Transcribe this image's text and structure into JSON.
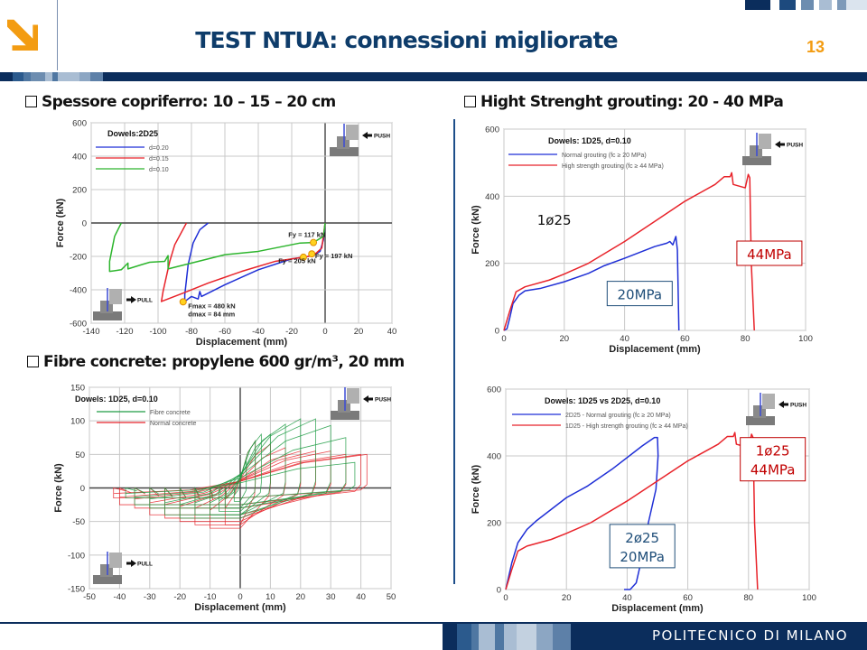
{
  "header": {
    "title": "TEST NTUA: connessioni migliorate",
    "page_number": "13",
    "accent_color": "#f39c12",
    "brand_color": "#0b2d5c",
    "logo_icon": "orange-down-right-arrow-icon"
  },
  "sections": [
    {
      "label": "Spessore copriferro: 10 – 15 – 20 cm",
      "icon": "checkbox-icon"
    },
    {
      "label": "Hight Strenght grouting: 20 - 40 MPa",
      "icon": "checkbox-icon"
    },
    {
      "label": "Fibre concrete: propylene 600 gr/m³, 20 mm",
      "icon": "checkbox-icon"
    }
  ],
  "footer": {
    "label": "POLITECNICO DI MILANO"
  },
  "chart_data": [
    {
      "type": "line",
      "title": "Dowels:2D25",
      "xlabel": "Displacement (mm)",
      "ylabel": "Force (kN)",
      "xlim": [
        -140,
        40
      ],
      "ylim": [
        -600,
        600
      ],
      "xticks": [
        -140,
        -120,
        -100,
        -80,
        -60,
        -40,
        -20,
        0,
        20,
        40
      ],
      "yticks": [
        -600,
        -400,
        -200,
        0,
        200,
        400,
        600
      ],
      "grid": true,
      "legend": "top-left",
      "icons": [
        {
          "kind": "push",
          "label": "PUSH",
          "position": "top-right"
        },
        {
          "kind": "pull",
          "label": "PULL",
          "position": "bottom-left"
        }
      ],
      "series": [
        {
          "name": "d=0.20",
          "color": "#1f2fd6",
          "points": [
            [
              0,
              0
            ],
            [
              -1,
              -100
            ],
            [
              -3,
              -170
            ],
            [
              -8,
              -197
            ],
            [
              -20,
              -215
            ],
            [
              -40,
              -280
            ],
            [
              -60,
              -370
            ],
            [
              -74,
              -440
            ],
            [
              -75,
              -410
            ],
            [
              -76,
              -455
            ],
            [
              -80,
              -440
            ],
            [
              -84,
              -470
            ],
            [
              -84,
              -430
            ],
            [
              -82,
              -250
            ],
            [
              -79,
              -120
            ],
            [
              -75,
              -40
            ],
            [
              -70,
              0
            ]
          ]
        },
        {
          "name": "d=0.15",
          "color": "#e8232a",
          "points": [
            [
              0,
              0
            ],
            [
              -2,
              -150
            ],
            [
              -7,
              -195
            ],
            [
              -13,
              -205
            ],
            [
              -30,
              -230
            ],
            [
              -50,
              -290
            ],
            [
              -70,
              -360
            ],
            [
              -85,
              -420
            ],
            [
              -98,
              -470
            ],
            [
              -97,
              -410
            ],
            [
              -93,
              -230
            ],
            [
              -90,
              -130
            ],
            [
              -83,
              0
            ]
          ]
        },
        {
          "name": "d=0.10",
          "color": "#2db52d",
          "points": [
            [
              0,
              0
            ],
            [
              -1,
              -80
            ],
            [
              -7,
              -117
            ],
            [
              -15,
              -120
            ],
            [
              -40,
              -170
            ],
            [
              -60,
              -190
            ],
            [
              -94,
              -275
            ],
            [
              -94,
              -195
            ],
            [
              -96,
              -230
            ],
            [
              -105,
              -235
            ],
            [
              -110,
              -250
            ],
            [
              -118,
              -275
            ],
            [
              -118,
              -240
            ],
            [
              -122,
              -280
            ],
            [
              -129,
              -290
            ],
            [
              -129,
              -230
            ],
            [
              -126,
              -80
            ],
            [
              -122,
              0
            ]
          ]
        }
      ],
      "markers": [
        [
          -7,
          -117
        ],
        [
          -8,
          -185
        ],
        [
          -13,
          -205
        ],
        [
          -85,
          -472
        ]
      ],
      "annotations": [
        {
          "text": "Fy = 117 kN",
          "x": -22,
          "y": -85
        },
        {
          "text": "Fy = 197 kN",
          "x": -6,
          "y": -212
        },
        {
          "text": "Fy = 205 kN",
          "x": -28,
          "y": -240
        },
        {
          "text": "Fmax = 480 kN",
          "x": -82,
          "y": -510
        },
        {
          "text": "dmax = 84 mm",
          "x": -82,
          "y": -560
        }
      ]
    },
    {
      "type": "line",
      "title": "Dowels: 1D25,  d=0.10",
      "xlabel": "Displacement (mm)",
      "ylabel": "Force (kN)",
      "xlim": [
        0,
        100
      ],
      "ylim": [
        0,
        600
      ],
      "xticks": [
        0,
        20,
        40,
        60,
        80,
        100
      ],
      "yticks": [
        0,
        200,
        400,
        600
      ],
      "grid": true,
      "legend": "top-left",
      "icons": [
        {
          "kind": "push",
          "label": "PUSH",
          "position": "top-right"
        }
      ],
      "series": [
        {
          "name": "Normal grouting (fc ≥ 20 MPa)",
          "color": "#1f2fd6",
          "points": [
            [
              0,
              0
            ],
            [
              1,
              5
            ],
            [
              2,
              40
            ],
            [
              3,
              80
            ],
            [
              5,
              105
            ],
            [
              7,
              118
            ],
            [
              12,
              125
            ],
            [
              20,
              145
            ],
            [
              28,
              170
            ],
            [
              33,
              192
            ],
            [
              40,
              215
            ],
            [
              50,
              250
            ],
            [
              54,
              260
            ],
            [
              55,
              265
            ],
            [
              56,
              255
            ],
            [
              57,
              280
            ],
            [
              57.5,
              240
            ],
            [
              58,
              0
            ]
          ]
        },
        {
          "name": "High strength grouting (fc ≥ 44 MPa)",
          "color": "#e8232a",
          "points": [
            [
              0,
              0
            ],
            [
              2,
              60
            ],
            [
              4,
              115
            ],
            [
              7,
              130
            ],
            [
              15,
              150
            ],
            [
              20,
              168
            ],
            [
              28,
              200
            ],
            [
              40,
              265
            ],
            [
              50,
              325
            ],
            [
              60,
              385
            ],
            [
              65,
              410
            ],
            [
              70,
              435
            ],
            [
              73,
              458
            ],
            [
              75,
              458
            ],
            [
              75.5,
              470
            ],
            [
              76,
              435
            ],
            [
              80,
              425
            ],
            [
              81,
              465
            ],
            [
              81.5,
              455
            ],
            [
              82,
              200
            ],
            [
              83,
              0
            ]
          ]
        }
      ],
      "text_labels": [
        {
          "text": "1ø25",
          "x": 11,
          "y": 315
        }
      ],
      "boxes": [
        {
          "lines": [
            "20MPa"
          ],
          "color": "#1f4e79",
          "x": 45,
          "y": 110
        },
        {
          "lines": [
            "44MPa"
          ],
          "color": "#c00000",
          "x": 88,
          "y": 230
        }
      ]
    },
    {
      "type": "line",
      "title": "Dowels: 1D25 vs 2D25,  d=0.10",
      "xlabel": "Displacement (mm)",
      "ylabel": "Force (kN)",
      "xlim": [
        0,
        100
      ],
      "ylim": [
        0,
        600
      ],
      "xticks": [
        0,
        20,
        40,
        60,
        80,
        100
      ],
      "yticks": [
        0,
        200,
        400,
        600
      ],
      "grid": true,
      "legend": "top-left",
      "icons": [
        {
          "kind": "push",
          "label": "PUSH",
          "position": "top-right"
        }
      ],
      "series": [
        {
          "name": "2D25 - Normal grouting (fc ≥ 20 MPa)",
          "color": "#1f2fd6",
          "points": [
            [
              0,
              0
            ],
            [
              2,
              80
            ],
            [
              4,
              140
            ],
            [
              7,
              180
            ],
            [
              10,
              205
            ],
            [
              20,
              275
            ],
            [
              27,
              310
            ],
            [
              35,
              360
            ],
            [
              45,
              430
            ],
            [
              49,
              455
            ],
            [
              50,
              455
            ],
            [
              50.2,
              400
            ],
            [
              49.5,
              300
            ],
            [
              47,
              200
            ],
            [
              45,
              100
            ],
            [
              43,
              20
            ],
            [
              41,
              0
            ],
            [
              39,
              0
            ]
          ]
        },
        {
          "name": "1D25 - High strength grouting (fc ≥ 44 MPa)",
          "color": "#e8232a",
          "points": [
            [
              0,
              0
            ],
            [
              2,
              60
            ],
            [
              4,
              115
            ],
            [
              7,
              130
            ],
            [
              15,
              150
            ],
            [
              20,
              168
            ],
            [
              28,
              200
            ],
            [
              40,
              265
            ],
            [
              50,
              325
            ],
            [
              60,
              385
            ],
            [
              65,
              410
            ],
            [
              70,
              435
            ],
            [
              73,
              458
            ],
            [
              75,
              458
            ],
            [
              75.5,
              470
            ],
            [
              76,
              435
            ],
            [
              80,
              425
            ],
            [
              81,
              465
            ],
            [
              81.5,
              455
            ],
            [
              82,
              200
            ],
            [
              83,
              0
            ]
          ]
        }
      ],
      "boxes": [
        {
          "lines": [
            "2ø25",
            "20MPa"
          ],
          "color": "#1f4e79",
          "x": 45,
          "y": 130
        },
        {
          "lines": [
            "1ø25",
            "44MPa"
          ],
          "color": "#c00000",
          "x": 88,
          "y": 390
        }
      ]
    },
    {
      "type": "line",
      "title": "Dowels: 1D25,  d=0.10",
      "xlabel": "Displacement (mm)",
      "ylabel": "Force (kN)",
      "xlim": [
        -50,
        50
      ],
      "ylim": [
        -150,
        150
      ],
      "xticks": [
        -50,
        -40,
        -30,
        -20,
        -10,
        0,
        10,
        20,
        30,
        40,
        50
      ],
      "yticks": [
        -150,
        -100,
        -50,
        0,
        50,
        100,
        150
      ],
      "grid": true,
      "legend": "top-left",
      "icons": [
        {
          "kind": "push",
          "label": "PUSH",
          "position": "top-right"
        },
        {
          "kind": "pull",
          "label": "PULL",
          "position": "bottom-left"
        }
      ],
      "series": [
        {
          "name": "Normal concrete",
          "color": "#e8232a",
          "cycles": {
            "amplitude": [
              5,
              10,
              15,
              20,
              25,
              30,
              35,
              40,
              42
            ],
            "peak_pos": [
              70,
              65,
              60,
              55,
              55,
              55,
              50,
              50,
              50
            ],
            "peak_neg": [
              -55,
              -60,
              -55,
              -50,
              -45,
              -40,
              -30,
              -25,
              -15
            ]
          }
        },
        {
          "name": "Fibre concrete",
          "color": "#1e9c44",
          "cycles": {
            "amplitude": [
              2,
              5,
              7,
              10,
              15,
              20,
              25,
              30,
              35,
              38
            ],
            "peak_pos": [
              40,
              70,
              80,
              80,
              95,
              103,
              103,
              93,
              75,
              38
            ],
            "peak_neg": [
              -20,
              -30,
              -35,
              -40,
              -40,
              -45,
              -40,
              -30,
              -25,
              -15
            ]
          }
        }
      ],
      "legend_order": [
        "Fibre concrete",
        "Normal concrete"
      ]
    }
  ]
}
